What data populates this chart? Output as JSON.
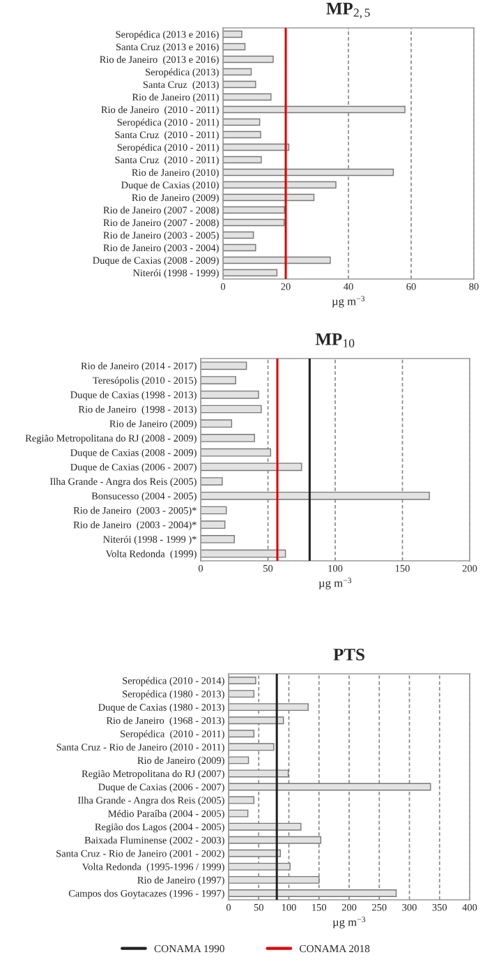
{
  "chart_data": [
    {
      "type": "bar",
      "orientation": "horizontal",
      "title": "MP$_{2,5}$",
      "xlabel": "µg m$^{−3}$",
      "categories": [
        "Seropédica (2013 e 2016)",
        "Santa Cruz (2013 e 2016)",
        "Rio de Janeiro  (2013 e 2016)",
        "Seropédica (2013)",
        "Santa Cruz  (2013)",
        "Rio de Janeiro (2011)",
        "Rio de Janeiro  (2010 - 2011)",
        "Seropédica (2010 - 2011)",
        "Santa Cruz  (2010 - 2011)",
        "Seropédica (2010 - 2011)",
        "Santa Cruz  (2010 - 2011)",
        "Rio de Janeiro (2010)",
        "Duque de Caxias (2010)",
        "Rio de Janeiro (2009)",
        "Rio de Janeiro (2007 - 2008)",
        "Rio de Janeiro (2007 - 2008)",
        "Rio de Janeiro (2003 - 2005)",
        "Rio de Janeiro (2003 - 2004)",
        "Duque de Caxias (2008 - 2009)",
        "Niterói (1998 - 1999)"
      ],
      "values": [
        6,
        7,
        16,
        9,
        10.4,
        15.3,
        58,
        11.7,
        12,
        21,
        12.2,
        54.3,
        36,
        29,
        19.6,
        19.5,
        9.7,
        10.4,
        34.2,
        17.2
      ],
      "color": "#e2e2e2",
      "xlim": [
        0,
        80
      ],
      "xticks": [
        0,
        20,
        40,
        60,
        80
      ],
      "grid": "x",
      "ref_lines": [
        {
          "axis": "x",
          "value": 20,
          "color": "#e00000"
        }
      ]
    },
    {
      "type": "bar",
      "orientation": "horizontal",
      "title": "MP$_{10}$",
      "xlabel": "µg m$^{−3}$",
      "categories": [
        "Rio de Janeiro (2014 - 2017)",
        "Teresópolis (2010 - 2015)",
        "Duque de Caxias (1998 - 2013)",
        "Rio de Janeiro  (1998 - 2013)",
        "Rio de Janeiro (2009)",
        "Região Metropolitana do RJ (2008 - 2009)",
        "Duque de Caxias (2008 - 2009)",
        "Duque de Caxias (2006 - 2007)",
        "Ilha Grande - Angra dos Reis (2005)",
        "Bonsucesso (2004 - 2005)",
        "Rio de Janeiro  (2003 - 2005)*",
        "Rio de Janeiro  (2003 - 2004)*",
        "Niterói (1998 - 1999 )*",
        "Volta Redonda  (1999)"
      ],
      "values": [
        34,
        26,
        43,
        45,
        23,
        40,
        52,
        75,
        16,
        170,
        19,
        18,
        25,
        63
      ],
      "legend": "bottom",
      "color": "#e2e2e2",
      "xlim": [
        0,
        200
      ],
      "xticks": [
        0,
        50,
        100,
        150,
        200
      ],
      "grid": "x",
      "ref_lines": [
        {
          "axis": "x",
          "value": 57,
          "color": "#e00000",
          "label": "CONAMA 2018"
        },
        {
          "axis": "x",
          "value": 81,
          "color": "#222222",
          "label": "CONAMA 1990"
        }
      ]
    },
    {
      "type": "bar",
      "orientation": "horizontal",
      "title": "PTS",
      "xlabel": "µg m$^{−3}$",
      "categories": [
        "Seropédica (2010 - 2014)",
        "Seropédica (1980 - 2013)",
        "Duque de Caxias (1980 - 2013)",
        "Rio de Janeiro  (1968 - 2013)",
        "Seropédica  (2010 - 2011)",
        "Santa Cruz - Rio de Janeiro (2010 - 2011)",
        "Rio de Janeiro (2009)",
        "Região Metropolitana do RJ (2007)",
        "Duque de Caxias (2006 - 2007)",
        "Ilha Grande - Angra dos Reis (2005)",
        "Médio Paraíba (2004 - 2005)",
        "Região dos Lagos (2004 - 2005)",
        "Baixada Fluminense (2002 - 2003)",
        "Santa Cruz - Rio de Janeiro (2001 - 2002)",
        "Volta Redonda  (1995-1996 / 1999)",
        "Rio de Janeiro (1997)",
        "Campos dos Goytacazes (1996 - 1997)"
      ],
      "values": [
        45,
        42,
        132,
        91,
        42,
        75,
        33,
        99,
        335,
        42,
        32,
        120,
        153,
        86,
        102,
        150,
        278
      ],
      "color": "#e2e2e2",
      "xlim": [
        0,
        400
      ],
      "xticks": [
        0,
        50,
        100,
        150,
        200,
        250,
        300,
        350,
        400
      ],
      "grid": "x",
      "ref_lines": [
        {
          "axis": "x",
          "value": 80,
          "color": "#222222"
        }
      ]
    }
  ]
}
